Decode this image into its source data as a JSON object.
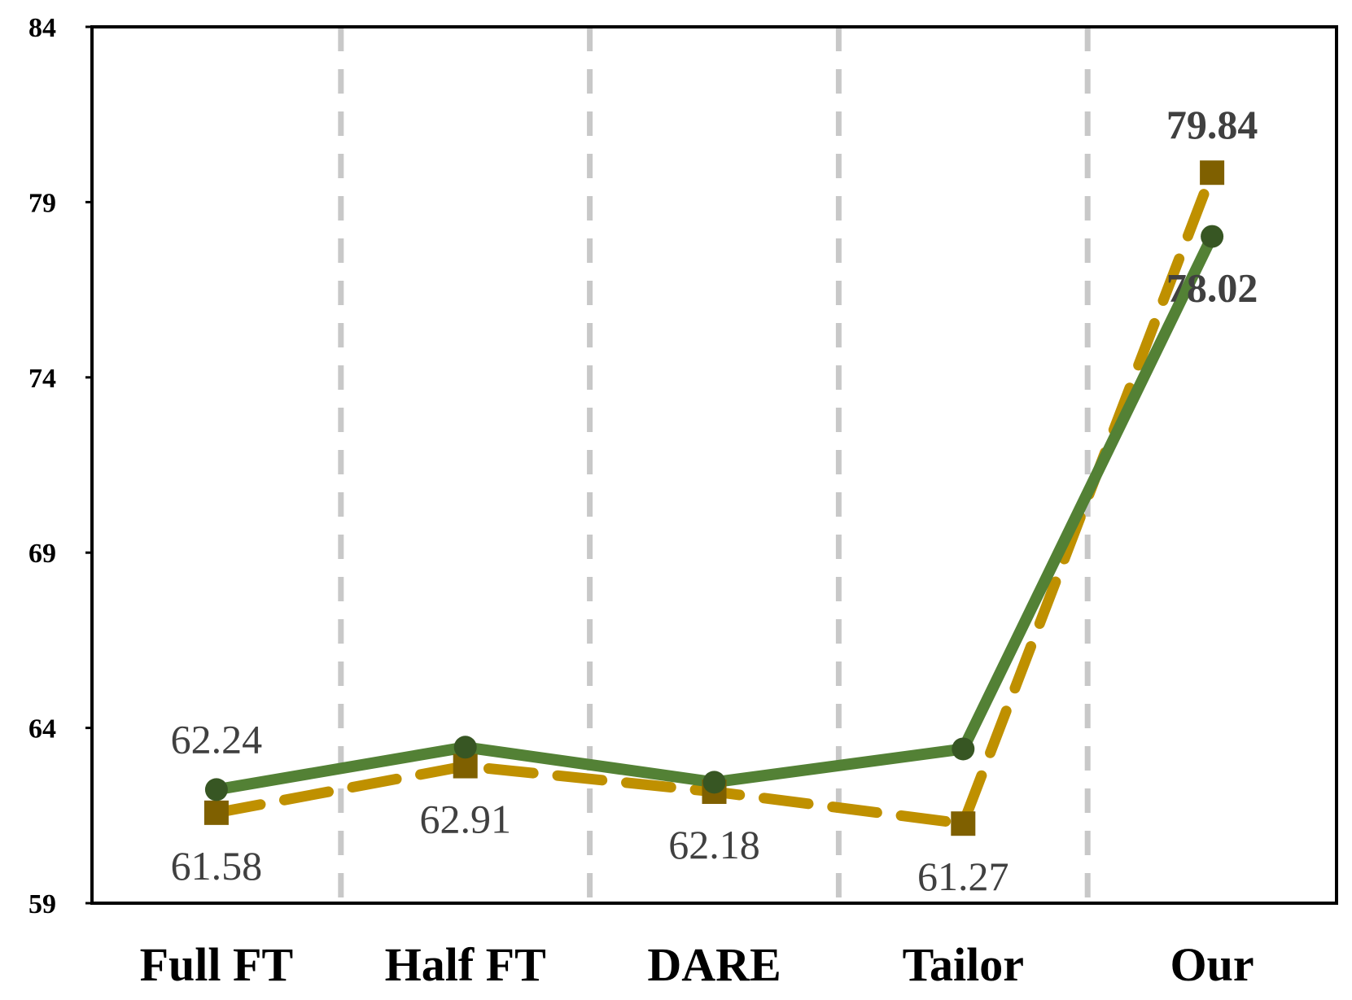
{
  "chart_data": {
    "type": "line",
    "categories": [
      "Full FT",
      "Half FT",
      "DARE",
      "Tailor",
      "Our"
    ],
    "ylim": [
      59,
      84
    ],
    "yticks": [
      59,
      64,
      69,
      74,
      79,
      84
    ],
    "grid": "vertical dashed separators between categories",
    "legend": "none",
    "series": [
      {
        "values": [
          62.24,
          63.45,
          62.45,
          63.4,
          78.02
        ],
        "color": "#538135",
        "marker_color": "#375623",
        "line_style": "solid",
        "marker": "circle",
        "labels": [
          "62.24",
          "",
          "",
          "",
          "78.02"
        ]
      },
      {
        "values": [
          61.58,
          62.91,
          62.18,
          61.27,
          79.84
        ],
        "color": "#BF9000",
        "marker_color": "#7F6000",
        "line_style": "dashed",
        "marker": "square",
        "labels": [
          "61.58",
          "62.91",
          "62.18",
          "61.27",
          "79.84"
        ]
      }
    ]
  }
}
